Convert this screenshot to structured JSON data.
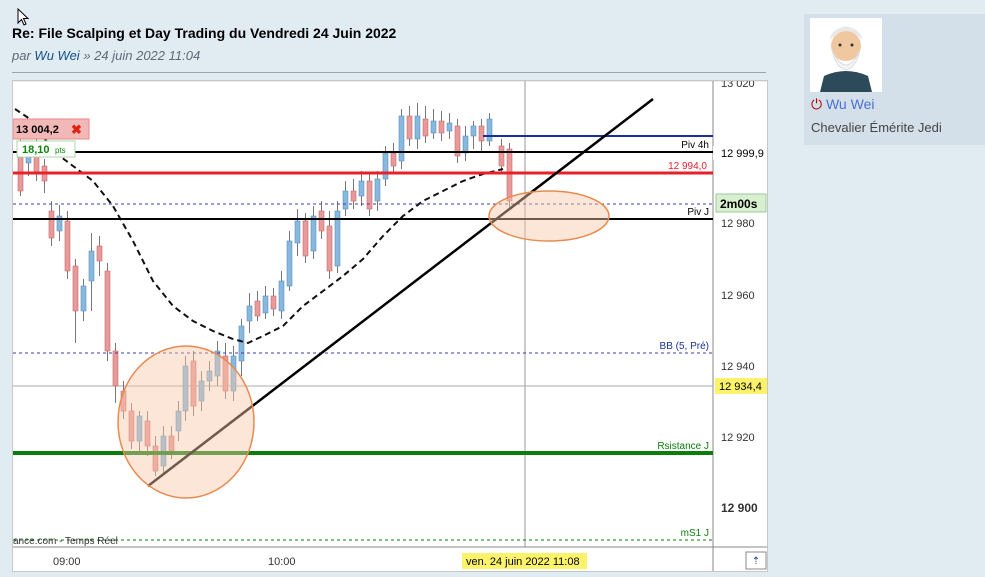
{
  "post": {
    "title": "Re: File Scalping et Day Trading du Vendredi 24 Juin 2022",
    "by_prefix": "par",
    "author": "Wu Wei",
    "date_sep": "»",
    "date": "24 juin 2022 11:04"
  },
  "profile": {
    "username": "Wu Wei",
    "rank": "Chevalier Émérite Jedi"
  },
  "chart": {
    "price_label": "13 004,2",
    "pts_label": "18,10",
    "pts_unit": "pts",
    "y_ticks": [
      "13 020",
      "12 999,9",
      "12 994,0",
      "12 980",
      "12 960",
      "12 940",
      "12 934,4",
      "12 920",
      "12 900"
    ],
    "timer": "2m00s",
    "lines": {
      "piv4h": "Piv 4h",
      "pivj": "Piv J",
      "bb": "BB (5, Pré)",
      "rsist": "Rsistance J",
      "ms1": "mS1 J"
    },
    "source": "ance.com - Temps Réel",
    "x_ticks": [
      "09:00",
      "10:00"
    ],
    "crosshair_date": "ven. 24 juin 2022 11:08",
    "colors": {
      "up": "#87b8dd",
      "down": "#e89a9a",
      "red_line": "#e8202a",
      "green_line": "#0a7d0a",
      "blue_line": "#1a2f9e",
      "blue_dashed": "#3c3ca8"
    }
  }
}
